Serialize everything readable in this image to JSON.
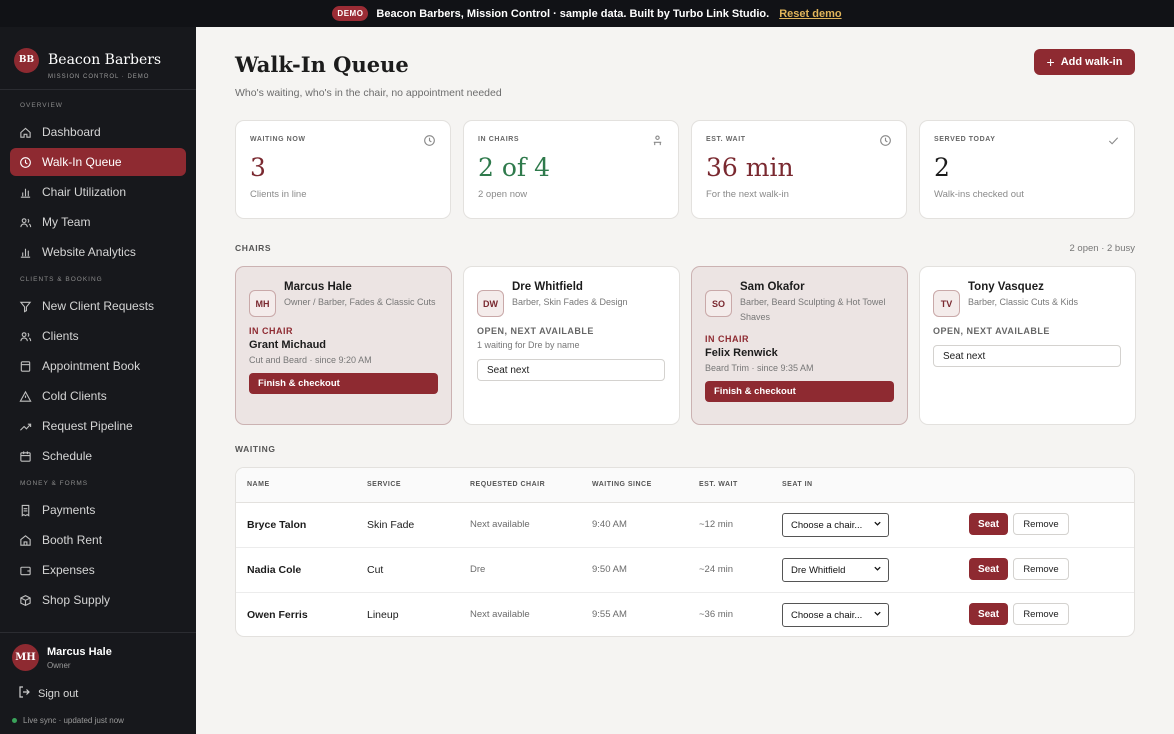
{
  "topbar": {
    "badge": "DEMO",
    "message": "Beacon Barbers, Mission Control · sample data. Built by Turbo Link Studio.",
    "reset_link": "Reset demo"
  },
  "brand": {
    "logo": "BB",
    "name": "Beacon Barbers",
    "subtitle": "MISSION CONTROL · DEMO"
  },
  "sidebar": {
    "sections": [
      {
        "label": "OVERVIEW",
        "items": [
          {
            "label": "Dashboard",
            "icon": "home-icon",
            "active": false
          },
          {
            "label": "Walk-In Queue",
            "icon": "clock-icon",
            "active": true
          },
          {
            "label": "Chair Utilization",
            "icon": "bar-chart-icon",
            "active": false
          },
          {
            "label": "My Team",
            "icon": "users-icon",
            "active": false
          },
          {
            "label": "Website Analytics",
            "icon": "bar-chart-icon",
            "active": false
          }
        ]
      },
      {
        "label": "CLIENTS & BOOKING",
        "items": [
          {
            "label": "New Client Requests",
            "icon": "filter-icon",
            "active": false
          },
          {
            "label": "Clients",
            "icon": "users-icon",
            "active": false
          },
          {
            "label": "Appointment Book",
            "icon": "book-icon",
            "active": false
          },
          {
            "label": "Cold Clients",
            "icon": "warning-icon",
            "active": false
          },
          {
            "label": "Request Pipeline",
            "icon": "trend-icon",
            "active": false
          },
          {
            "label": "Schedule",
            "icon": "calendar-icon",
            "active": false
          }
        ]
      },
      {
        "label": "MONEY & FORMS",
        "items": [
          {
            "label": "Payments",
            "icon": "receipt-icon",
            "active": false
          },
          {
            "label": "Booth Rent",
            "icon": "building-icon",
            "active": false
          },
          {
            "label": "Expenses",
            "icon": "wallet-icon",
            "active": false
          },
          {
            "label": "Shop Supply",
            "icon": "box-icon",
            "active": false
          }
        ]
      }
    ]
  },
  "user": {
    "initials": "MH",
    "name": "Marcus Hale",
    "role": "Owner",
    "signout": "Sign out",
    "status": "Live sync · updated just now"
  },
  "page": {
    "title": "Walk-In Queue",
    "subtitle": "Who's waiting, who's in the chair, no appointment needed",
    "add_button": "Add walk-in"
  },
  "stats": [
    {
      "label": "WAITING NOW",
      "value": "3",
      "note": "Clients in line",
      "icon": "clock-icon",
      "color": "#7a2930"
    },
    {
      "label": "IN CHAIRS",
      "value": "2 of 4",
      "note": "2 open now",
      "icon": "person-chair-icon",
      "color": "#2f7a4c"
    },
    {
      "label": "EST. WAIT",
      "value": "36 min",
      "note": "For the next walk-in",
      "icon": "clock-icon",
      "color": "#7a2930"
    },
    {
      "label": "SERVED TODAY",
      "value": "2",
      "note": "Walk-ins checked out",
      "icon": "check-icon",
      "color": "#1c1c1c"
    }
  ],
  "chairs_section": {
    "label": "CHAIRS",
    "summary": "2 open · 2 busy"
  },
  "chairs": [
    {
      "initials": "MH",
      "name": "Marcus Hale",
      "role": "Owner / Barber, Fades & Classic Cuts",
      "status": "IN CHAIR",
      "client": "Grant Michaud",
      "detail": "Cut and Beard · since 9:20 AM",
      "action": "Finish & checkout",
      "busy": true
    },
    {
      "initials": "DW",
      "name": "Dre Whitfield",
      "role": "Barber, Skin Fades & Design",
      "status": "OPEN, NEXT AVAILABLE",
      "note": "1 waiting for Dre by name",
      "action": "Seat next",
      "busy": false
    },
    {
      "initials": "SO",
      "name": "Sam Okafor",
      "role": "Barber, Beard Sculpting & Hot Towel Shaves",
      "status": "IN CHAIR",
      "client": "Felix Renwick",
      "detail": "Beard Trim · since 9:35 AM",
      "action": "Finish & checkout",
      "busy": true
    },
    {
      "initials": "TV",
      "name": "Tony Vasquez",
      "role": "Barber, Classic Cuts & Kids",
      "status": "OPEN, NEXT AVAILABLE",
      "action": "Seat next",
      "busy": false
    }
  ],
  "waiting_section": {
    "label": "WAITING"
  },
  "waiting_table": {
    "columns": [
      "NAME",
      "SERVICE",
      "REQUESTED CHAIR",
      "WAITING SINCE",
      "EST. WAIT",
      "SEAT IN"
    ],
    "rows": [
      {
        "name": "Bryce Talon",
        "service": "Skin Fade",
        "requested": "Next available",
        "since": "9:40 AM",
        "wait": "~12 min",
        "seat_in": "Choose a chair..."
      },
      {
        "name": "Nadia Cole",
        "service": "Cut",
        "requested": "Dre",
        "since": "9:50 AM",
        "wait": "~24 min",
        "seat_in": "Dre Whitfield"
      },
      {
        "name": "Owen Ferris",
        "service": "Lineup",
        "requested": "Next available",
        "since": "9:55 AM",
        "wait": "~36 min",
        "seat_in": "Choose a chair..."
      }
    ],
    "seat_label": "Seat",
    "remove_label": "Remove"
  }
}
